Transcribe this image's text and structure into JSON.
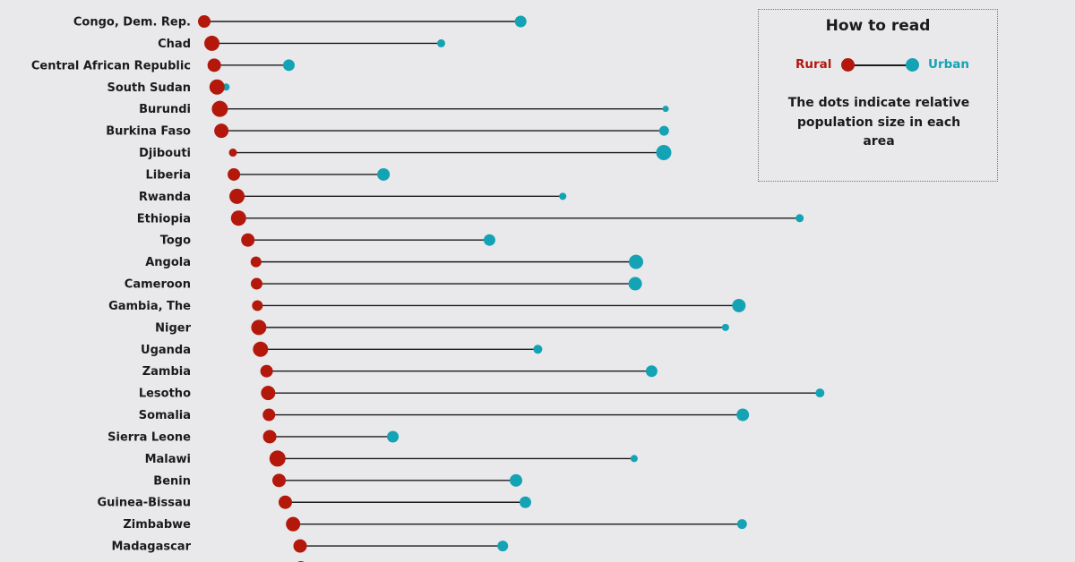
{
  "chart_data": {
    "type": "dot-range",
    "legend": {
      "title": "How to read",
      "rural_label": "Rural",
      "urban_label": "Urban",
      "note": "The dots indicate relative population size in each area"
    },
    "colors": {
      "rural": "#b3180b",
      "urban": "#14a3b4",
      "line": "#1b1b1b"
    },
    "series": [
      {
        "name": "Rural",
        "values": [
          0.0,
          4.9,
          6.4,
          8.2,
          10.0,
          11.0,
          18.4,
          19.0,
          21.0,
          22.0,
          28.0,
          33.2,
          33.6,
          34.1,
          35.0,
          36.1,
          40.0,
          41.0,
          41.5,
          42.0,
          47.0,
          48.0,
          52.0,
          57.0,
          61.5,
          62.0
        ]
      },
      {
        "name": "Urban",
        "values": [
          203.0,
          152.0,
          54.3,
          14.0,
          296.0,
          295.0,
          294.8,
          115.0,
          230.0,
          382.0,
          183.0,
          277.0,
          276.5,
          343.0,
          334.4,
          214.0,
          287.0,
          395.0,
          345.5,
          121.0,
          275.8,
          200.0,
          206.0,
          345.0,
          191.5,
          0
        ]
      }
    ],
    "categories": [
      "Congo, Dem. Rep.",
      "Chad",
      "Central African Republic",
      "South Sudan",
      "Burundi",
      "Burkina Faso",
      "Djibouti",
      "Liberia",
      "Rwanda",
      "Ethiopia",
      "Togo",
      "Angola",
      "Cameroon",
      "Gambia, The",
      "Niger",
      "Uganda",
      "Zambia",
      "Lesotho",
      "Somalia",
      "Sierra Leone",
      "Malawi",
      "Benin",
      "Guinea-Bissau",
      "Zimbabwe",
      "Madagascar",
      ""
    ],
    "rural_dot_size": [
      7,
      8.5,
      7.5,
      8.5,
      9,
      8,
      4.5,
      7,
      8.5,
      8.5,
      7.5,
      6,
      6.5,
      6,
      8.5,
      8.5,
      7,
      8,
      7,
      7.5,
      9,
      7.5,
      7.5,
      8,
      7.5,
      7.5
    ],
    "urban_dot_size": [
      6.5,
      4.5,
      6.5,
      4,
      3.5,
      5.5,
      8.5,
      7,
      4,
      4.5,
      6.5,
      8,
      7.5,
      7.5,
      4,
      5,
      6.5,
      5,
      7,
      6.5,
      4,
      7,
      6.5,
      5.5,
      6,
      0
    ]
  }
}
